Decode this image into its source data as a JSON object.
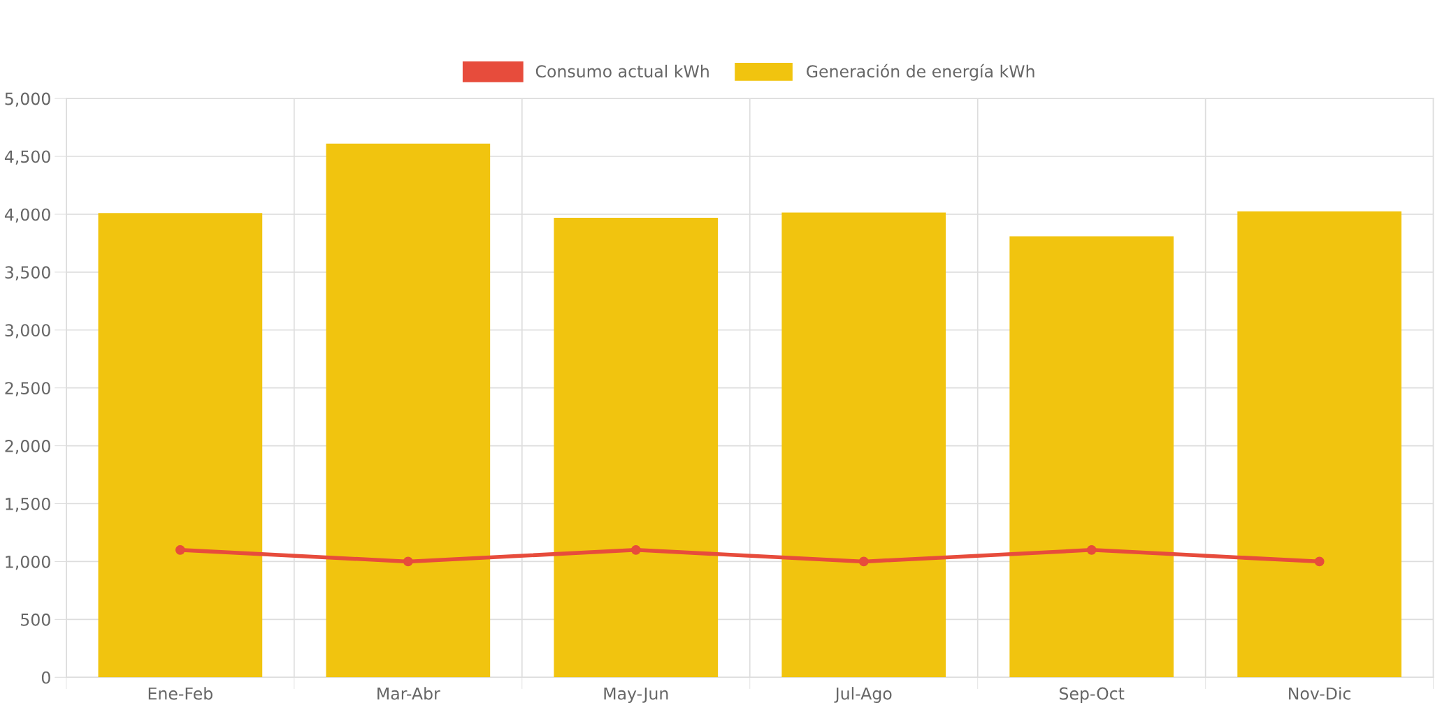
{
  "chart_data": {
    "type": "bar",
    "categories": [
      "Ene-Feb",
      "Mar-Abr",
      "May-Jun",
      "Jul-Ago",
      "Sep-Oct",
      "Nov-Dic"
    ],
    "series": [
      {
        "name": "Consumo actual kWh",
        "type": "line",
        "color": "#e74c3c",
        "values": [
          1100,
          1000,
          1100,
          1000,
          1100,
          1000
        ]
      },
      {
        "name": "Generación de energía kWh",
        "color": "#f1c40f",
        "values": [
          4010,
          4610,
          3970,
          4015,
          3810,
          4025
        ]
      }
    ],
    "ylim": [
      0,
      5000
    ],
    "yticks": [
      {
        "value": 0,
        "label": "0"
      },
      {
        "value": 500,
        "label": "500"
      },
      {
        "value": 1000,
        "label": "1,000"
      },
      {
        "value": 1500,
        "label": "1,500"
      },
      {
        "value": 2000,
        "label": "2,000"
      },
      {
        "value": 2500,
        "label": "2,500"
      },
      {
        "value": 3000,
        "label": "3,000"
      },
      {
        "value": 3500,
        "label": "3,500"
      },
      {
        "value": 4000,
        "label": "4,000"
      },
      {
        "value": 4500,
        "label": "4,500"
      },
      {
        "value": 5000,
        "label": "5,000"
      }
    ],
    "grid": true,
    "legend": "top",
    "marker": "circle"
  }
}
